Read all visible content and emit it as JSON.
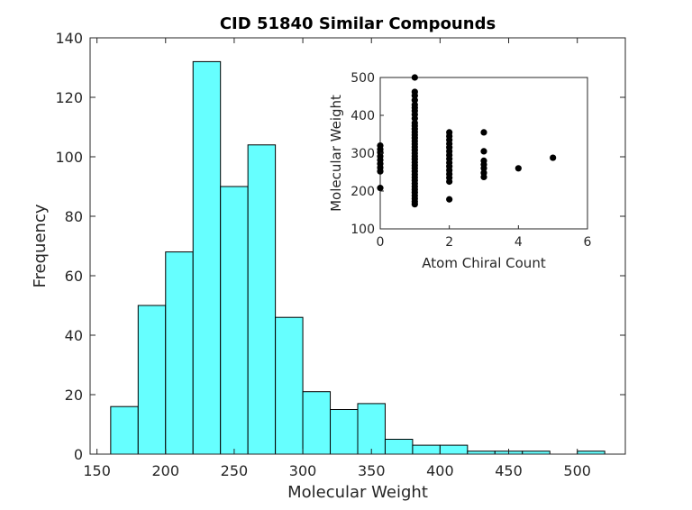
{
  "chart_data": [
    {
      "type": "bar",
      "title": "CID 51840 Similar Compounds",
      "xlabel": "Molecular Weight",
      "ylabel": "Frequency",
      "xlim": [
        145,
        535
      ],
      "ylim": [
        0,
        140
      ],
      "xticks": [
        150,
        200,
        250,
        300,
        350,
        400,
        450,
        500
      ],
      "yticks": [
        0,
        20,
        40,
        60,
        80,
        100,
        120,
        140
      ],
      "bin_edges": [
        160,
        180,
        200,
        220,
        240,
        260,
        280,
        300,
        320,
        340,
        360,
        380,
        400,
        420,
        440,
        460,
        480,
        500,
        520
      ],
      "values": [
        16,
        50,
        68,
        132,
        90,
        104,
        46,
        21,
        15,
        17,
        5,
        3,
        3,
        1,
        1,
        1,
        0,
        1
      ],
      "bar_color": "#66ffff",
      "edge_color": "#000000"
    },
    {
      "type": "scatter",
      "xlabel": "Atom Chiral Count",
      "ylabel": "Molecular Weight",
      "xlim": [
        0,
        6
      ],
      "ylim": [
        100,
        500
      ],
      "xticks": [
        0,
        2,
        4,
        6
      ],
      "yticks": [
        100,
        200,
        300,
        400,
        500
      ],
      "marker_color": "#000000",
      "points": [
        {
          "x": 0,
          "y": 208
        },
        {
          "x": 0,
          "y": 252
        },
        {
          "x": 0,
          "y": 262
        },
        {
          "x": 0,
          "y": 272
        },
        {
          "x": 0,
          "y": 282
        },
        {
          "x": 0,
          "y": 292
        },
        {
          "x": 0,
          "y": 302
        },
        {
          "x": 0,
          "y": 310
        },
        {
          "x": 0,
          "y": 320
        },
        {
          "x": 1,
          "y": 165
        },
        {
          "x": 1,
          "y": 172
        },
        {
          "x": 1,
          "y": 180
        },
        {
          "x": 1,
          "y": 188
        },
        {
          "x": 1,
          "y": 196
        },
        {
          "x": 1,
          "y": 204
        },
        {
          "x": 1,
          "y": 212
        },
        {
          "x": 1,
          "y": 220
        },
        {
          "x": 1,
          "y": 228
        },
        {
          "x": 1,
          "y": 236
        },
        {
          "x": 1,
          "y": 244
        },
        {
          "x": 1,
          "y": 252
        },
        {
          "x": 1,
          "y": 260
        },
        {
          "x": 1,
          "y": 268
        },
        {
          "x": 1,
          "y": 276
        },
        {
          "x": 1,
          "y": 284
        },
        {
          "x": 1,
          "y": 292
        },
        {
          "x": 1,
          "y": 300
        },
        {
          "x": 1,
          "y": 308
        },
        {
          "x": 1,
          "y": 316
        },
        {
          "x": 1,
          "y": 324
        },
        {
          "x": 1,
          "y": 332
        },
        {
          "x": 1,
          "y": 340
        },
        {
          "x": 1,
          "y": 348
        },
        {
          "x": 1,
          "y": 356
        },
        {
          "x": 1,
          "y": 364
        },
        {
          "x": 1,
          "y": 372
        },
        {
          "x": 1,
          "y": 380
        },
        {
          "x": 1,
          "y": 392
        },
        {
          "x": 1,
          "y": 402
        },
        {
          "x": 1,
          "y": 412
        },
        {
          "x": 1,
          "y": 420
        },
        {
          "x": 1,
          "y": 428
        },
        {
          "x": 1,
          "y": 440
        },
        {
          "x": 1,
          "y": 452
        },
        {
          "x": 1,
          "y": 462
        },
        {
          "x": 1,
          "y": 500
        },
        {
          "x": 2,
          "y": 178
        },
        {
          "x": 2,
          "y": 225
        },
        {
          "x": 2,
          "y": 235
        },
        {
          "x": 2,
          "y": 245
        },
        {
          "x": 2,
          "y": 255
        },
        {
          "x": 2,
          "y": 265
        },
        {
          "x": 2,
          "y": 275
        },
        {
          "x": 2,
          "y": 285
        },
        {
          "x": 2,
          "y": 295
        },
        {
          "x": 2,
          "y": 305
        },
        {
          "x": 2,
          "y": 315
        },
        {
          "x": 2,
          "y": 325
        },
        {
          "x": 2,
          "y": 335
        },
        {
          "x": 2,
          "y": 345
        },
        {
          "x": 2,
          "y": 355
        },
        {
          "x": 3,
          "y": 237
        },
        {
          "x": 3,
          "y": 248
        },
        {
          "x": 3,
          "y": 260
        },
        {
          "x": 3,
          "y": 270
        },
        {
          "x": 3,
          "y": 280
        },
        {
          "x": 3,
          "y": 305
        },
        {
          "x": 3,
          "y": 355
        },
        {
          "x": 4,
          "y": 260
        },
        {
          "x": 5,
          "y": 288
        }
      ]
    }
  ]
}
